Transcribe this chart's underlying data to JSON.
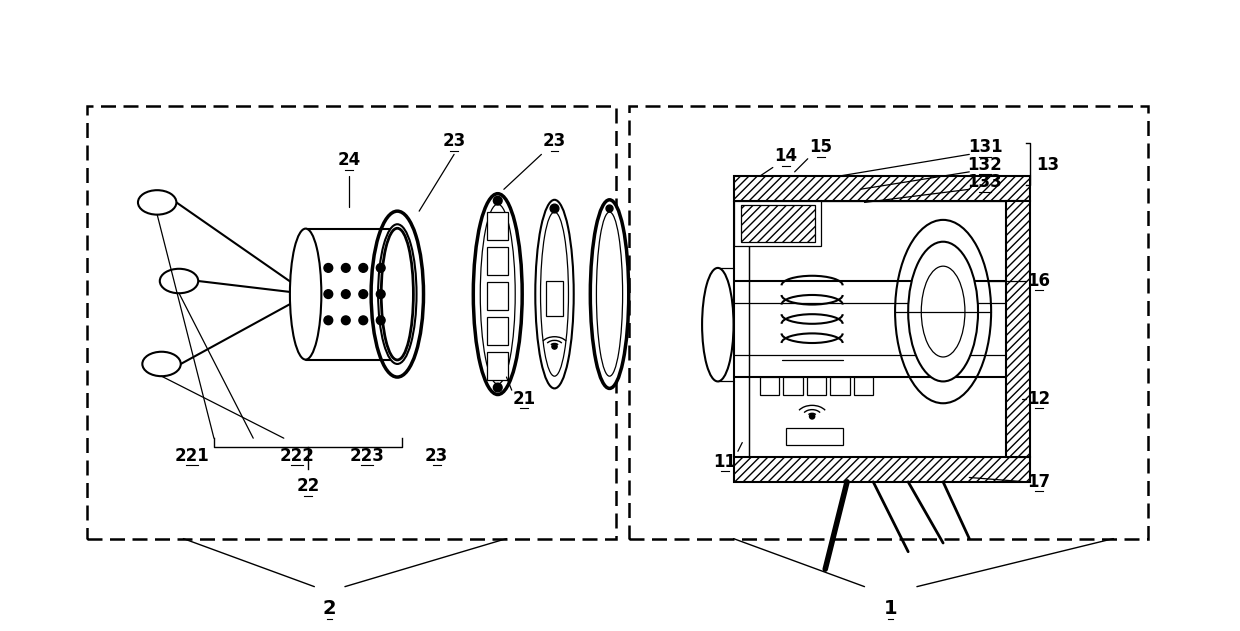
{
  "bg": "#ffffff",
  "lc": "#000000",
  "fw": 12.4,
  "fh": 6.31,
  "dpi": 100
}
